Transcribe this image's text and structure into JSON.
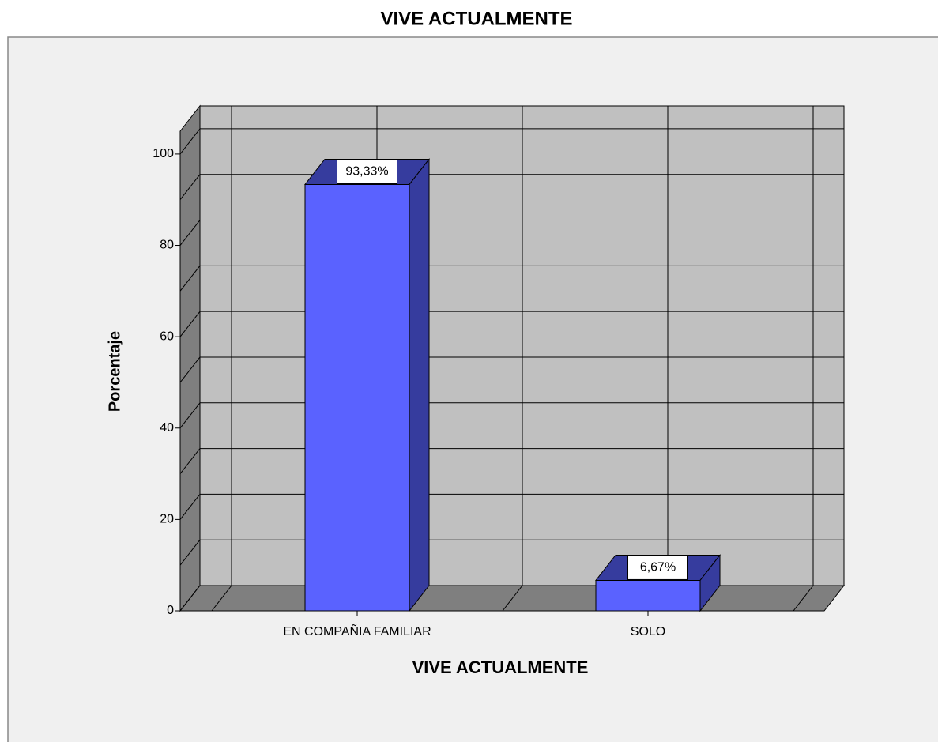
{
  "chart_data": {
    "type": "bar3d",
    "title": "VIVE ACTUALMENTE",
    "x_label": "VIVE ACTUALMENTE",
    "y_label": "Porcentaje",
    "categories": [
      "EN COMPAÑIA FAMILIAR",
      "SOLO"
    ],
    "values": [
      93.33,
      6.67
    ],
    "value_labels": [
      "93,33%",
      "6,67%"
    ],
    "color": "#5a62ff",
    "shade_color": "#363c9e",
    "ylim": [
      0,
      105
    ],
    "yticks": [
      0,
      20,
      40,
      60,
      80,
      100
    ],
    "minor_yticks": [
      10,
      30,
      50,
      70,
      90
    ],
    "grid": true
  }
}
